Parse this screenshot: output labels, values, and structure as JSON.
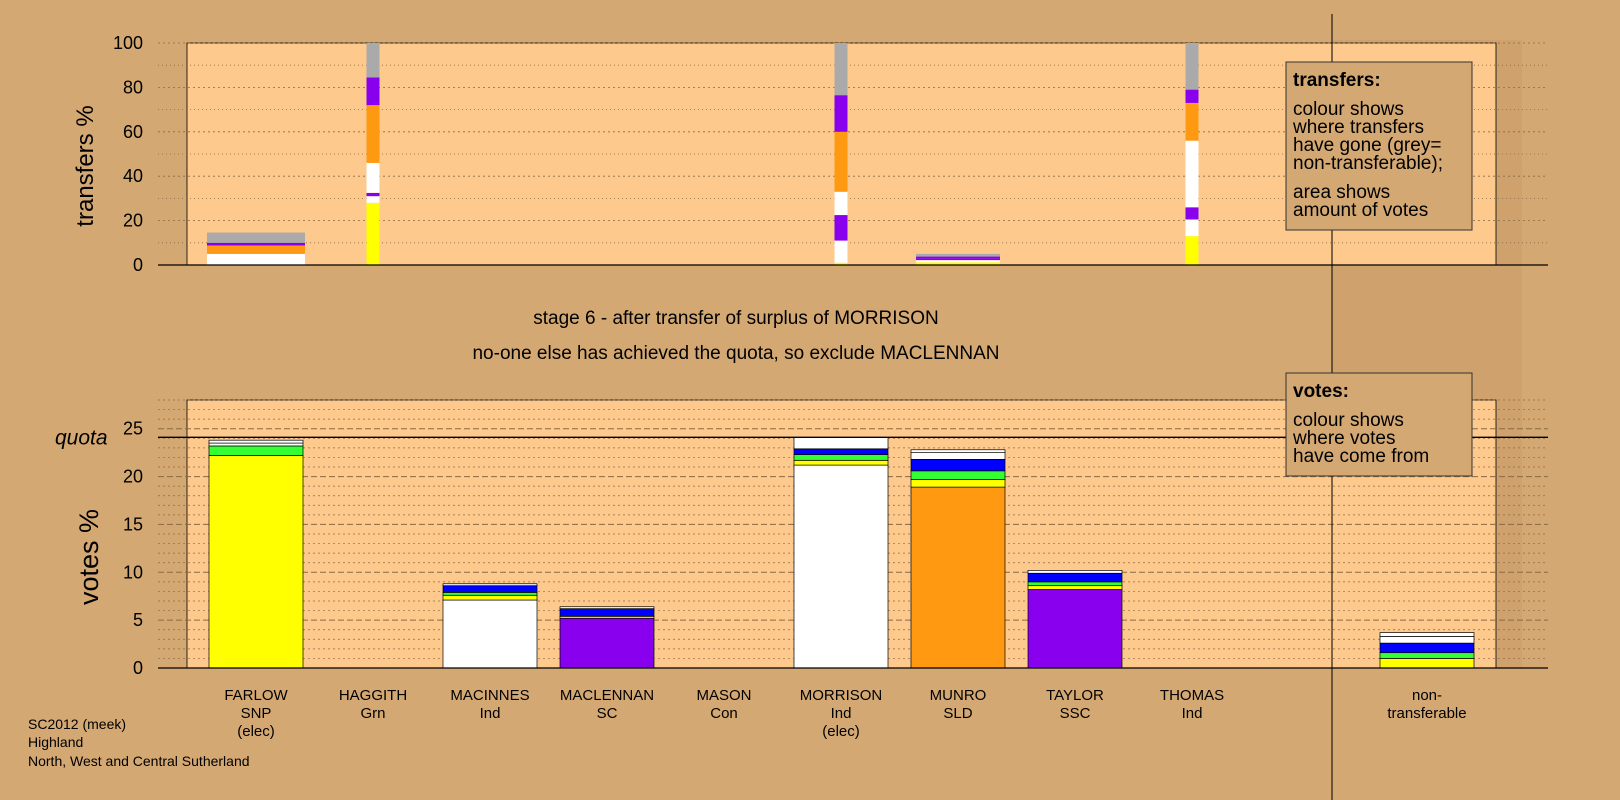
{
  "palette": {
    "background": "#d4a873",
    "plot_bg": "#fdc98c",
    "grid": "#8a6a44"
  },
  "stage_text": {
    "line1": "stage 6 - after transfer of surplus of MORRISON",
    "line2": "no-one else has achieved the quota, so exclude MACLENNAN"
  },
  "footer": {
    "line1": "SC2012 (meek)",
    "line2": "Highland",
    "line3": "North, West and Central Sutherland"
  },
  "legend_transfers": {
    "title": "transfers:",
    "lines": [
      "colour shows",
      "where transfers",
      "have gone (grey=",
      "non-transferable);",
      "area shows",
      "amount of votes"
    ]
  },
  "legend_votes": {
    "title": "votes:",
    "lines": [
      "colour shows",
      "where votes",
      "have come from"
    ]
  },
  "candidates": [
    {
      "name": "FARLOW",
      "party": "SNP",
      "status": "(elec)"
    },
    {
      "name": "HAGGITH",
      "party": "Grn",
      "status": ""
    },
    {
      "name": "MACINNES",
      "party": "Ind",
      "status": ""
    },
    {
      "name": "MACLENNAN",
      "party": "SC",
      "status": ""
    },
    {
      "name": "MASON",
      "party": "Con",
      "status": ""
    },
    {
      "name": "MORRISON",
      "party": "Ind",
      "status": "(elec)"
    },
    {
      "name": "MUNRO",
      "party": "SLD",
      "status": ""
    },
    {
      "name": "TAYLOR",
      "party": "SSC",
      "status": ""
    },
    {
      "name": "THOMAS",
      "party": "Ind",
      "status": ""
    },
    {
      "name": "non-",
      "party": "transferable",
      "status": ""
    }
  ],
  "chart_data": [
    {
      "type": "bar",
      "ylabel": "transfers %",
      "ylim": [
        0,
        100
      ],
      "yticks": [
        0,
        20,
        40,
        60,
        80,
        100
      ],
      "colors": {
        "FARLOW": "#ffff00",
        "HAGGITH": "#33ff33",
        "MACINNES": "#ffffff",
        "MACLENNAN": "#8800ee",
        "MASON": "#0000ff",
        "MORRISON": "#ffffff",
        "MUNRO": "#ff9911",
        "TAYLOR": "#8800ee",
        "THOMAS": "#ffffff",
        "non-transferable": "#aaaaaa"
      },
      "bars": [
        {
          "candidate": "FARLOW",
          "kind": "block",
          "segments": [
            {
              "to": "THOMAS",
              "value": 2.5
            },
            {
              "to": "MACINNES",
              "value": 2.5
            },
            {
              "to": "MUNRO",
              "value": 3.8
            },
            {
              "to": "TAYLOR",
              "value": 1.2
            },
            {
              "to": "non-transferable",
              "value": 4.6
            }
          ]
        },
        {
          "candidate": "HAGGITH",
          "kind": "strip",
          "segments": [
            {
              "to": "FARLOW",
              "value": 28
            },
            {
              "to": "MACINNES",
              "value": 3
            },
            {
              "to": "MACLENNAN",
              "value": 1.5
            },
            {
              "to": "THOMAS",
              "value": 13.5
            },
            {
              "to": "MUNRO",
              "value": 26
            },
            {
              "to": "TAYLOR",
              "value": 12.5
            },
            {
              "to": "non-transferable",
              "value": 15.5
            }
          ]
        },
        {
          "candidate": "MORRISON",
          "kind": "strip",
          "segments": [
            {
              "to": "FARLOW",
              "value": 1
            },
            {
              "to": "MACINNES",
              "value": 10
            },
            {
              "to": "MACLENNAN",
              "value": 11.5
            },
            {
              "to": "THOMAS",
              "value": 10.5
            },
            {
              "to": "MUNRO",
              "value": 27
            },
            {
              "to": "TAYLOR",
              "value": 16.5
            },
            {
              "to": "non-transferable",
              "value": 23.5
            }
          ]
        },
        {
          "candidate": "MUNRO",
          "kind": "block",
          "segments": [
            {
              "to": "FARLOW",
              "value": 1.2
            },
            {
              "to": "MACINNES",
              "value": 1
            },
            {
              "to": "MACLENNAN",
              "value": 0.8
            },
            {
              "to": "TAYLOR",
              "value": 0.8
            },
            {
              "to": "non-transferable",
              "value": 1.2
            }
          ]
        },
        {
          "candidate": "THOMAS",
          "kind": "strip",
          "segments": [
            {
              "to": "FARLOW",
              "value": 13
            },
            {
              "to": "MACINNES",
              "value": 7.5
            },
            {
              "to": "MACLENNAN",
              "value": 5.5
            },
            {
              "to": "MORRISON",
              "value": 30
            },
            {
              "to": "MUNRO",
              "value": 17
            },
            {
              "to": "TAYLOR",
              "value": 6
            },
            {
              "to": "non-transferable",
              "value": 21
            }
          ]
        }
      ]
    },
    {
      "type": "bar",
      "ylabel": "votes %",
      "ylim": [
        0,
        28
      ],
      "yticks": [
        0,
        5,
        10,
        15,
        20,
        25
      ],
      "quota": 24.1,
      "quota_label": "quota",
      "colors": {
        "own": "#ffff00",
        "HAGGITH": "#33ff33",
        "MASON": "#0000ff",
        "white": "#ffffff",
        "MUNRO": "#ff9911",
        "TAYLOR": "#8800ee"
      },
      "bars": [
        {
          "candidate": "FARLOW",
          "segments": [
            {
              "from": "FARLOW",
              "color": "#ffff00",
              "value": 22.2
            },
            {
              "from": "HAGGITH",
              "color": "#33ff33",
              "value": 1.0
            },
            {
              "from": "MORRISON",
              "color": "#ffffff",
              "value": 0.3
            },
            {
              "from": "THOMAS",
              "color": "#ffffff",
              "value": 0.3
            }
          ]
        },
        {
          "candidate": "HAGGITH",
          "segments": []
        },
        {
          "candidate": "MACINNES",
          "segments": [
            {
              "from": "MACINNES",
              "color": "#ffffff",
              "value": 7.1
            },
            {
              "from": "FARLOW",
              "color": "#ffff00",
              "value": 0.5
            },
            {
              "from": "HAGGITH",
              "color": "#33ff33",
              "value": 0.3
            },
            {
              "from": "MASON",
              "color": "#0000ff",
              "value": 0.7
            },
            {
              "from": "THOMAS",
              "color": "#ffffff",
              "value": 0.2
            }
          ]
        },
        {
          "candidate": "MACLENNAN",
          "segments": [
            {
              "from": "MACLENNAN",
              "color": "#8800ee",
              "value": 5.2
            },
            {
              "from": "FARLOW",
              "color": "#ffff00",
              "value": 0.2
            },
            {
              "from": "MASON",
              "color": "#0000ff",
              "value": 0.8
            },
            {
              "from": "THOMAS",
              "color": "#ffffff",
              "value": 0.2
            }
          ]
        },
        {
          "candidate": "MASON",
          "segments": []
        },
        {
          "candidate": "MORRISON",
          "segments": [
            {
              "from": "MORRISON",
              "color": "#ffffff",
              "value": 21.2
            },
            {
              "from": "FARLOW",
              "color": "#ffff00",
              "value": 0.5
            },
            {
              "from": "HAGGITH",
              "color": "#33ff33",
              "value": 0.6
            },
            {
              "from": "MASON",
              "color": "#0000ff",
              "value": 0.6
            },
            {
              "from": "THOMAS",
              "color": "#ffffff",
              "value": 1.2
            }
          ]
        },
        {
          "candidate": "MUNRO",
          "segments": [
            {
              "from": "MUNRO",
              "color": "#ff9911",
              "value": 18.9
            },
            {
              "from": "FARLOW",
              "color": "#ffff00",
              "value": 0.8
            },
            {
              "from": "HAGGITH",
              "color": "#33ff33",
              "value": 0.9
            },
            {
              "from": "MASON",
              "color": "#0000ff",
              "value": 1.2
            },
            {
              "from": "MORRISON",
              "color": "#ffffff",
              "value": 0.7
            },
            {
              "from": "THOMAS",
              "color": "#ffffff",
              "value": 0.3
            }
          ]
        },
        {
          "candidate": "TAYLOR",
          "segments": [
            {
              "from": "TAYLOR",
              "color": "#8800ee",
              "value": 8.2
            },
            {
              "from": "FARLOW",
              "color": "#ffff00",
              "value": 0.4
            },
            {
              "from": "HAGGITH",
              "color": "#33ff33",
              "value": 0.4
            },
            {
              "from": "MASON",
              "color": "#0000ff",
              "value": 0.9
            },
            {
              "from": "THOMAS",
              "color": "#ffffff",
              "value": 0.3
            }
          ]
        },
        {
          "candidate": "THOMAS",
          "segments": []
        },
        {
          "candidate": "non-transferable",
          "segments": [
            {
              "from": "FARLOW",
              "color": "#ffff00",
              "value": 1.0
            },
            {
              "from": "HAGGITH",
              "color": "#33ff33",
              "value": 0.6
            },
            {
              "from": "MASON",
              "color": "#0000ff",
              "value": 1.0
            },
            {
              "from": "MORRISON",
              "color": "#ffffff",
              "value": 0.7
            },
            {
              "from": "THOMAS",
              "color": "#ffffff",
              "value": 0.4
            }
          ]
        }
      ]
    }
  ]
}
